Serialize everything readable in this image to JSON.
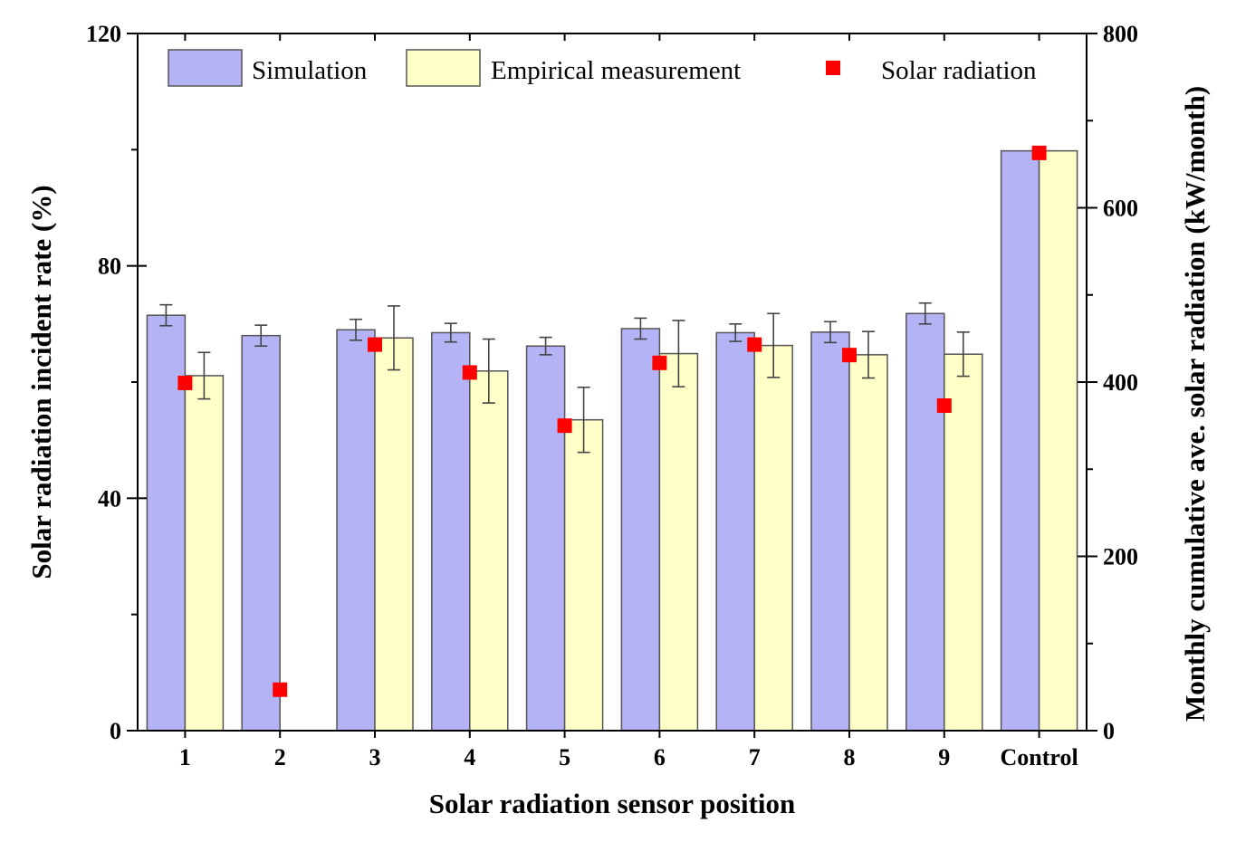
{
  "chart_data": {
    "type": "bar",
    "categories": [
      "1",
      "2",
      "3",
      "4",
      "5",
      "6",
      "7",
      "8",
      "9",
      "Control"
    ],
    "xlabel": "Solar radiation sensor position",
    "ylabel": "Solar radiation incident rate (%)",
    "y2label": "Monthly cumulative ave. solar radiation (kW/month)",
    "ylim": [
      0,
      120
    ],
    "y2lim": [
      0,
      800
    ],
    "yticks": [
      0,
      40,
      80,
      120
    ],
    "y2ticks": [
      0,
      200,
      400,
      600,
      800
    ],
    "legend_position": "top",
    "series": [
      {
        "name": "Simulation",
        "color": "#b3b3f5",
        "values": [
          71.5,
          68,
          69,
          68.5,
          66.2,
          69.2,
          68.5,
          68.6,
          71.8,
          99.8
        ],
        "errors": [
          1.8,
          1.8,
          1.8,
          1.6,
          1.5,
          1.8,
          1.5,
          1.8,
          1.8,
          0
        ]
      },
      {
        "name": "Empirical measurement",
        "color": "#ffffc8",
        "values": [
          61.1,
          null,
          67.6,
          61.9,
          53.5,
          64.9,
          66.3,
          64.7,
          64.8,
          99.8
        ],
        "errors": [
          4.0,
          null,
          5.5,
          5.5,
          5.6,
          5.7,
          5.5,
          4.0,
          3.8,
          0
        ]
      },
      {
        "name": "Solar radiation",
        "color": "#ff0000",
        "axis": "right",
        "values": [
          399,
          47,
          443,
          411,
          350,
          422,
          443,
          431,
          373,
          663
        ]
      }
    ]
  }
}
